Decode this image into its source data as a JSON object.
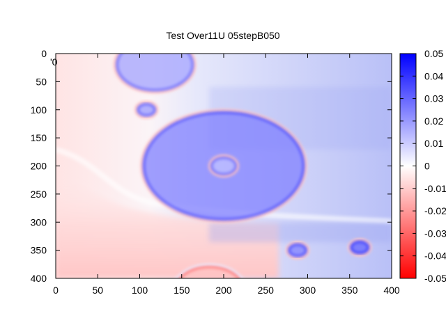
{
  "chart_data": {
    "type": "heatmap",
    "title": "Test Over11U 05stepB050",
    "stray_label": "'0",
    "xlim": [
      0,
      400
    ],
    "ylim": [
      0,
      400
    ],
    "y_axis_inverted": true,
    "x_ticks": [
      "0",
      "50",
      "100",
      "150",
      "200",
      "250",
      "300",
      "350",
      "400"
    ],
    "y_ticks": [
      "0",
      "50",
      "100",
      "150",
      "200",
      "250",
      "300",
      "350",
      "400"
    ],
    "colorbar": {
      "range": [
        -0.05,
        0.05
      ],
      "low_color": "#ff0000",
      "mid_color": "#ffffff",
      "high_color": "#0000ff",
      "ticks": [
        "0.05",
        "0.04",
        "0.03",
        "0.02",
        "0.01",
        "0",
        "-0.01",
        "-0.02",
        "-0.03",
        "-0.04",
        "-0.05"
      ]
    },
    "features": [
      {
        "shape": "circle",
        "cx": 200,
        "cy": 200,
        "r": 95,
        "value": 0.025
      },
      {
        "shape": "circle",
        "cx": 200,
        "cy": 200,
        "r": 14,
        "value": 0.012
      },
      {
        "shape": "circle",
        "cx": 118,
        "cy": 20,
        "r": 45,
        "value": 0.018
      },
      {
        "shape": "circle",
        "cx": 108,
        "cy": 100,
        "r": 10,
        "value": 0.02
      },
      {
        "shape": "circle",
        "cx": 288,
        "cy": 350,
        "r": 10,
        "value": 0.025
      },
      {
        "shape": "circle",
        "cx": 362,
        "cy": 345,
        "r": 10,
        "value": 0.03
      },
      {
        "shape": "circle",
        "cx": 183,
        "cy": 420,
        "r": 40,
        "value": -0.012
      }
    ]
  }
}
